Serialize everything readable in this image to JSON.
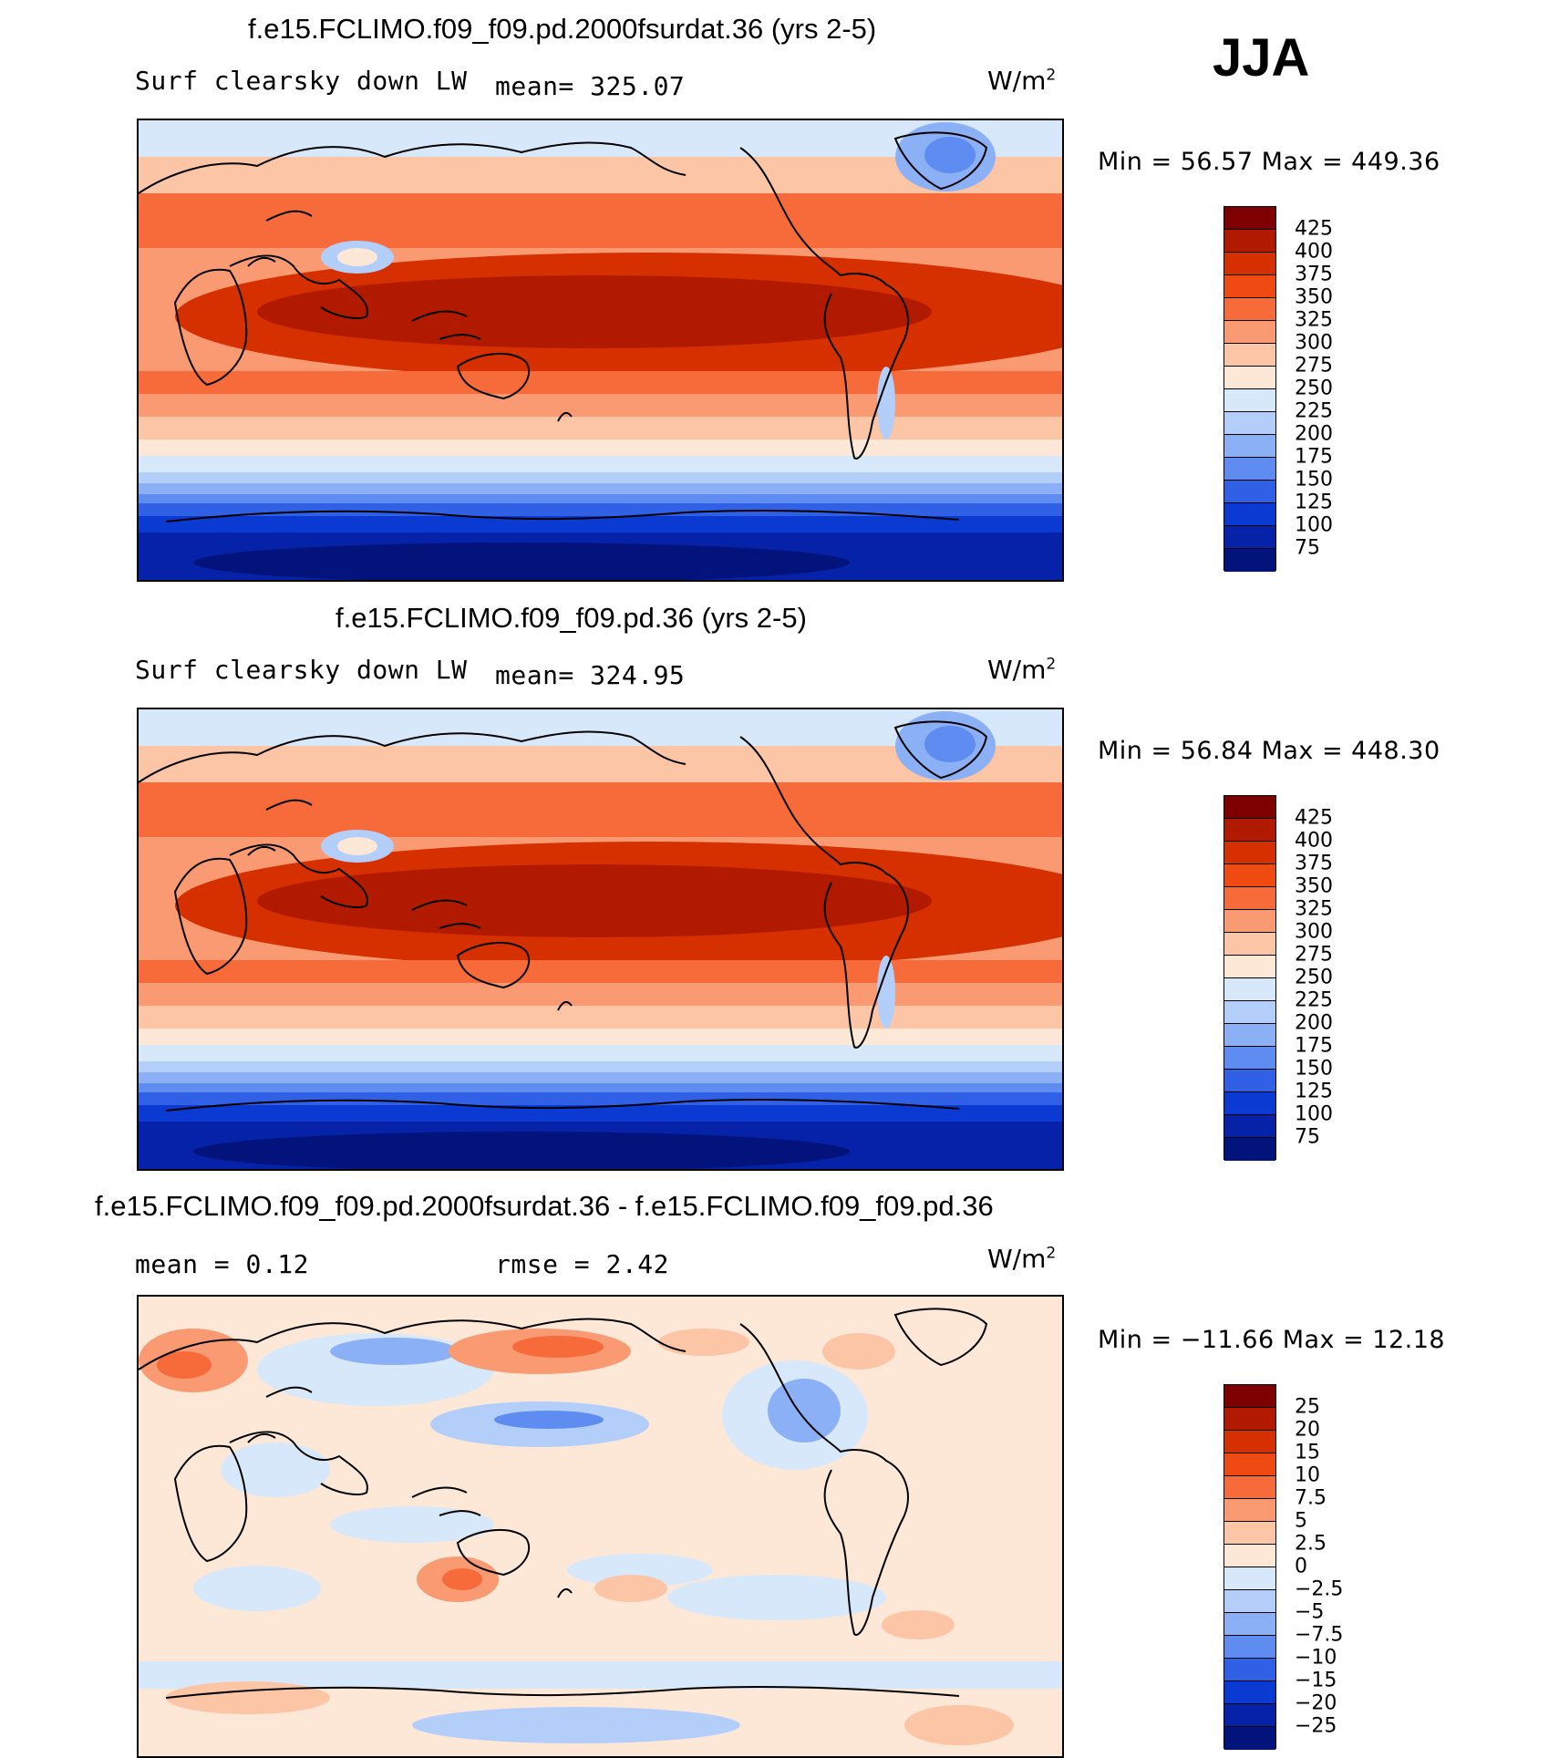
{
  "season": "JJA",
  "panels": [
    {
      "title": "f.e15.FCLIMO.f09_f09.pd.2000fsurdat.36 (yrs 2-5)",
      "variable": "Surf clearsky down LW",
      "stat": "mean= 325.07",
      "units": "W/m",
      "units_exp": "2",
      "minmax": "Min =   56.57 Max =  449.36",
      "colorbar": {
        "labels": [
          "425",
          "400",
          "375",
          "350",
          "325",
          "300",
          "275",
          "250",
          "225",
          "200",
          "175",
          "150",
          "125",
          "100",
          "75"
        ],
        "colors": [
          "#7f0000",
          "#b21a00",
          "#d62f00",
          "#ee4a12",
          "#f76b3b",
          "#fa9a73",
          "#fcc5a6",
          "#fde8d8",
          "#d8e8fb",
          "#b4cefa",
          "#8cb0f5",
          "#5e8cf0",
          "#2f60e6",
          "#0a3ad2",
          "#0522a8",
          "#03137c"
        ]
      }
    },
    {
      "title": "f.e15.FCLIMO.f09_f09.pd.36 (yrs 2-5)",
      "variable": "Surf clearsky down LW",
      "stat": "mean= 324.95",
      "units": "W/m",
      "units_exp": "2",
      "minmax": "Min =   56.84 Max =  448.30",
      "colorbar": {
        "labels": [
          "425",
          "400",
          "375",
          "350",
          "325",
          "300",
          "275",
          "250",
          "225",
          "200",
          "175",
          "150",
          "125",
          "100",
          "75"
        ],
        "colors": [
          "#7f0000",
          "#b21a00",
          "#d62f00",
          "#ee4a12",
          "#f76b3b",
          "#fa9a73",
          "#fcc5a6",
          "#fde8d8",
          "#d8e8fb",
          "#b4cefa",
          "#8cb0f5",
          "#5e8cf0",
          "#2f60e6",
          "#0a3ad2",
          "#0522a8",
          "#03137c"
        ]
      }
    },
    {
      "title": "f.e15.FCLIMO.f09_f09.pd.2000fsurdat.36 - f.e15.FCLIMO.f09_f09.pd.36",
      "stat_mean": "mean =    0.12",
      "stat_rmse": "rmse =    2.42",
      "units": "W/m",
      "units_exp": "2",
      "minmax": "Min = −11.66 Max =   12.18",
      "colorbar": {
        "labels": [
          "25",
          "20",
          "15",
          "10",
          "7.5",
          "5",
          "2.5",
          "0",
          "−2.5",
          "−5",
          "−7.5",
          "−10",
          "−15",
          "−20",
          "−25"
        ],
        "colors": [
          "#7f0000",
          "#b21a00",
          "#d62f00",
          "#ee4a12",
          "#f76b3b",
          "#fa9a73",
          "#fcc5a6",
          "#fde8d8",
          "#d8e8fb",
          "#b4cefa",
          "#8cb0f5",
          "#5e8cf0",
          "#2f60e6",
          "#0a3ad2",
          "#0522a8",
          "#03137c"
        ]
      }
    }
  ]
}
